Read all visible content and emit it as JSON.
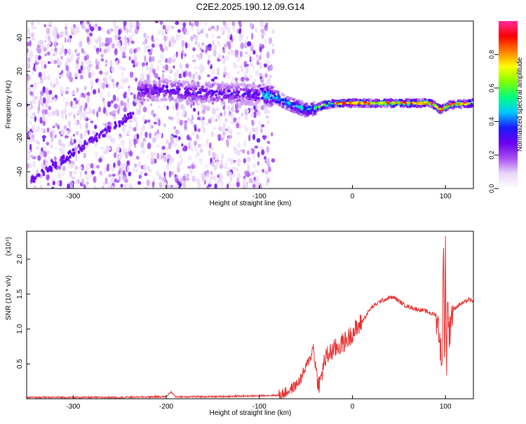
{
  "title": "C2E2.2025.190.12.09.G14",
  "chart_data": [
    {
      "type": "heatmap",
      "xlabel": "Height of straight line (km)",
      "ylabel": "Frequency (Hz)",
      "xlim": [
        -350,
        130
      ],
      "ylim": [
        -50,
        50
      ],
      "xticks": [
        -300,
        -200,
        -100,
        0,
        100
      ],
      "yticks": [
        -40,
        -20,
        0,
        20,
        40
      ],
      "colorbar": {
        "label": "Normalized spectral amplitude",
        "range": [
          0,
          1
        ],
        "ticks": [
          0.0,
          0.2,
          0.4,
          0.6,
          0.8
        ],
        "tick_labels": [
          "0.0",
          "0.2",
          "0.4",
          "0.6",
          "0.8"
        ],
        "colors": [
          "#ffffff",
          "#e8d6f8",
          "#a64df0",
          "#6a00f0",
          "#1a1aff",
          "#00c8ff",
          "#00ff80",
          "#7fff00",
          "#ffff00",
          "#ff7f00",
          "#ff0000",
          "#ff2a9a"
        ]
      },
      "ridge": [
        {
          "x": -225,
          "y": 8
        },
        {
          "x": -200,
          "y": 9
        },
        {
          "x": -170,
          "y": 7
        },
        {
          "x": -140,
          "y": 7
        },
        {
          "x": -110,
          "y": 6
        },
        {
          "x": -95,
          "y": 6
        },
        {
          "x": -80,
          "y": 4
        },
        {
          "x": -70,
          "y": 1
        },
        {
          "x": -60,
          "y": -1
        },
        {
          "x": -50,
          "y": -3
        },
        {
          "x": -40,
          "y": -2
        },
        {
          "x": -30,
          "y": 0
        },
        {
          "x": -15,
          "y": 1
        },
        {
          "x": 0,
          "y": 1
        },
        {
          "x": 30,
          "y": 1
        },
        {
          "x": 60,
          "y": 1
        },
        {
          "x": 85,
          "y": 1
        },
        {
          "x": 95,
          "y": -3
        },
        {
          "x": 105,
          "y": 0
        },
        {
          "x": 130,
          "y": 1
        }
      ]
    },
    {
      "type": "line",
      "xlabel": "Height of straight line (km)",
      "ylabel": "SNR (10 * v/v)",
      "y_multiplier": "(x10⁴)",
      "xlim": [
        -350,
        130
      ],
      "ylim": [
        0,
        2.4
      ],
      "xticks": [
        -300,
        -200,
        -100,
        0,
        100
      ],
      "yticks": [
        0.5,
        1.0,
        1.5,
        2.0
      ],
      "ytick_labels": [
        "0.5",
        "1.0",
        "1.5",
        "2.0"
      ],
      "color": "#e83030",
      "series": [
        {
          "x": [
            -350,
            -300,
            -250,
            -200,
            -195,
            -190,
            -150,
            -110,
            -80,
            -70,
            -60,
            -55,
            -50,
            -45,
            -42,
            -40,
            -38,
            -35,
            -30,
            -25,
            -20,
            -15,
            -10,
            -5,
            0,
            5,
            10,
            15,
            20,
            25,
            30,
            35,
            40,
            45,
            50,
            55,
            60,
            65,
            70,
            75,
            80,
            85,
            90,
            94,
            96,
            98,
            99,
            100,
            101,
            102,
            104,
            106,
            110,
            115,
            120,
            125,
            130
          ],
          "y": [
            0.02,
            0.02,
            0.02,
            0.03,
            0.1,
            0.03,
            0.03,
            0.04,
            0.05,
            0.1,
            0.2,
            0.3,
            0.45,
            0.6,
            0.75,
            0.5,
            0.3,
            0.2,
            0.55,
            0.65,
            0.7,
            0.75,
            0.8,
            0.85,
            0.95,
            1.0,
            1.1,
            1.2,
            1.3,
            1.35,
            1.4,
            1.42,
            1.45,
            1.45,
            1.4,
            1.35,
            1.32,
            1.3,
            1.28,
            1.27,
            1.25,
            1.22,
            1.2,
            0.9,
            0.3,
            2.35,
            0.15,
            2.4,
            0.2,
            1.5,
            0.9,
            1.2,
            1.3,
            1.35,
            1.38,
            1.42,
            1.4
          ]
        }
      ]
    }
  ]
}
